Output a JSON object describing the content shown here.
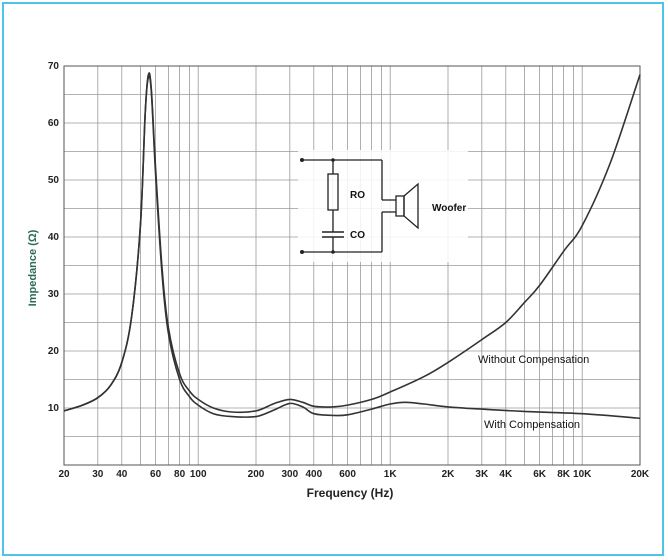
{
  "chart_data": {
    "type": "line",
    "title": "",
    "xlabel": "Frequency (Hz)",
    "ylabel": "Impedance (Ω)",
    "x_scale": "log",
    "xlim": [
      20,
      20000
    ],
    "ylim": [
      0,
      70
    ],
    "grid": true,
    "x_ticks": [
      {
        "v": 20,
        "label": "20"
      },
      {
        "v": 30,
        "label": "30"
      },
      {
        "v": 40,
        "label": "40"
      },
      {
        "v": 60,
        "label": "60"
      },
      {
        "v": 80,
        "label": "80"
      },
      {
        "v": 100,
        "label": "100"
      },
      {
        "v": 200,
        "label": "200"
      },
      {
        "v": 300,
        "label": "300"
      },
      {
        "v": 400,
        "label": "400"
      },
      {
        "v": 600,
        "label": "600"
      },
      {
        "v": 1000,
        "label": "1K"
      },
      {
        "v": 2000,
        "label": "2K"
      },
      {
        "v": 3000,
        "label": "3K"
      },
      {
        "v": 4000,
        "label": "4K"
      },
      {
        "v": 6000,
        "label": "6K"
      },
      {
        "v": 8000,
        "label": "8K"
      },
      {
        "v": 10000,
        "label": "10K"
      },
      {
        "v": 20000,
        "label": "20K"
      }
    ],
    "y_ticks": [
      {
        "v": 10,
        "label": "10"
      },
      {
        "v": 20,
        "label": "20"
      },
      {
        "v": 30,
        "label": "30"
      },
      {
        "v": 40,
        "label": "40"
      },
      {
        "v": 50,
        "label": "50"
      },
      {
        "v": 60,
        "label": "60"
      },
      {
        "v": 70,
        "label": "70"
      }
    ],
    "series": [
      {
        "name": "Without Compensation",
        "points": [
          [
            20,
            9.5
          ],
          [
            25,
            10.5
          ],
          [
            30,
            11.8
          ],
          [
            35,
            14
          ],
          [
            40,
            18
          ],
          [
            45,
            26
          ],
          [
            50,
            42
          ],
          [
            53,
            62
          ],
          [
            55,
            68.5
          ],
          [
            57,
            66
          ],
          [
            60,
            52
          ],
          [
            65,
            34
          ],
          [
            70,
            24
          ],
          [
            80,
            16
          ],
          [
            90,
            13
          ],
          [
            100,
            11.5
          ],
          [
            120,
            10
          ],
          [
            150,
            9.3
          ],
          [
            200,
            9.5
          ],
          [
            250,
            10.8
          ],
          [
            300,
            11.5
          ],
          [
            350,
            11
          ],
          [
            400,
            10.3
          ],
          [
            500,
            10.2
          ],
          [
            600,
            10.5
          ],
          [
            800,
            11.5
          ],
          [
            1000,
            12.8
          ],
          [
            1500,
            15.5
          ],
          [
            2000,
            18
          ],
          [
            3000,
            22
          ],
          [
            4000,
            25
          ],
          [
            5000,
            28.5
          ],
          [
            6000,
            31.5
          ],
          [
            8000,
            37.5
          ],
          [
            10000,
            42
          ],
          [
            14000,
            53
          ],
          [
            20000,
            68.5
          ]
        ]
      },
      {
        "name": "With Compensation",
        "points": [
          [
            20,
            9.5
          ],
          [
            25,
            10.5
          ],
          [
            30,
            11.8
          ],
          [
            35,
            14
          ],
          [
            40,
            18
          ],
          [
            45,
            26
          ],
          [
            50,
            42
          ],
          [
            53,
            62
          ],
          [
            55,
            68
          ],
          [
            57,
            65.5
          ],
          [
            60,
            51
          ],
          [
            65,
            33
          ],
          [
            70,
            23
          ],
          [
            80,
            15
          ],
          [
            90,
            12
          ],
          [
            100,
            10.5
          ],
          [
            120,
            9
          ],
          [
            150,
            8.5
          ],
          [
            200,
            8.5
          ],
          [
            250,
            9.7
          ],
          [
            300,
            10.8
          ],
          [
            350,
            10.2
          ],
          [
            400,
            9
          ],
          [
            500,
            8.7
          ],
          [
            600,
            8.8
          ],
          [
            800,
            9.8
          ],
          [
            1000,
            10.7
          ],
          [
            1200,
            11
          ],
          [
            1500,
            10.7
          ],
          [
            2000,
            10.2
          ],
          [
            3000,
            9.8
          ],
          [
            5000,
            9.4
          ],
          [
            10000,
            9
          ],
          [
            20000,
            8.2
          ]
        ]
      }
    ],
    "annotations": {
      "without": "Without Compensation",
      "with": "With Compensation",
      "circuit_r": "RO",
      "circuit_c": "CO",
      "circuit_load": "Woofer"
    },
    "colors": {
      "curve": "#333333",
      "grid": "#9a9a9a",
      "frame": "#4fc3e8"
    }
  }
}
